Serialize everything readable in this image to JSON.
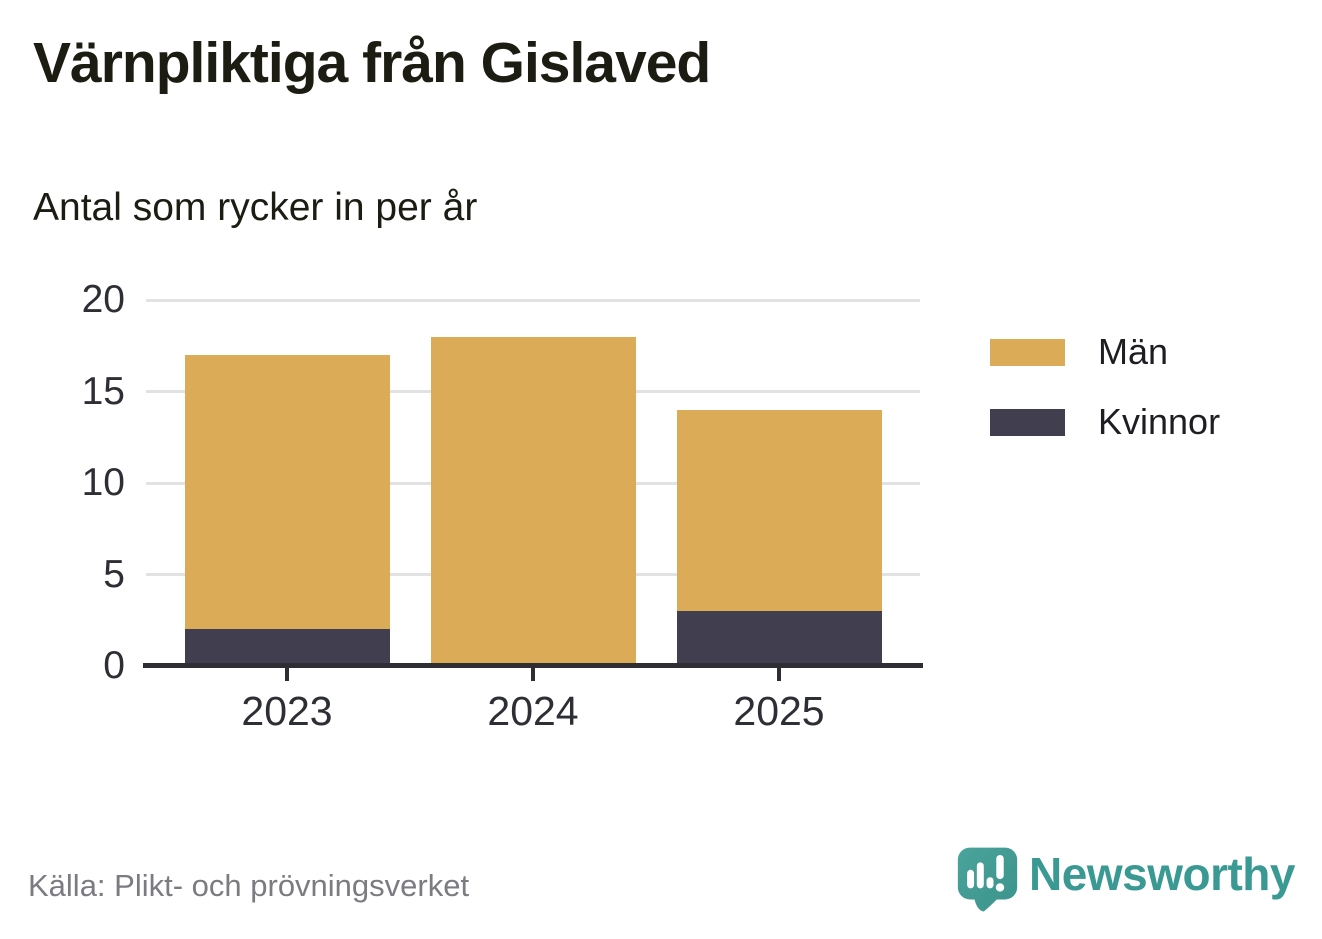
{
  "header": {
    "title": "Värnpliktiga från Gislaved",
    "subtitle": "Antal som rycker in per år"
  },
  "chart_data": {
    "type": "bar",
    "stacked": true,
    "title": "Värnpliktiga från Gislaved",
    "subtitle": "Antal som rycker in per år",
    "categories": [
      "2023",
      "2024",
      "2025"
    ],
    "series": [
      {
        "name": "Män",
        "color": "#dcab57",
        "values": [
          15,
          18,
          11
        ]
      },
      {
        "name": "Kvinnor",
        "color": "#413f4f",
        "values": [
          2,
          0,
          3
        ]
      }
    ],
    "stack_bottom_to_top": [
      "Kvinnor",
      "Män"
    ],
    "totals": [
      17,
      18,
      14
    ],
    "xlabel": "",
    "ylabel": "",
    "ylim": [
      0,
      20
    ],
    "yticks": [
      0,
      5,
      10,
      15,
      20
    ],
    "grid": true,
    "legend_position": "right"
  },
  "legend": {
    "items": [
      {
        "label": "Män",
        "color": "#dcab57"
      },
      {
        "label": "Kvinnor",
        "color": "#413f4f"
      }
    ]
  },
  "footer": {
    "source": "Källa: Plikt- och prövningsverket",
    "brand": "Newsworthy",
    "brand_color": "#3a9a93"
  },
  "colors": {
    "men": "#dcab57",
    "women": "#413f4f",
    "grid": "#e2e2e4",
    "axis": "#2e2d33",
    "text": "#1c1c13",
    "muted_text": "#7c7b82",
    "teal": "#3a9a93"
  }
}
